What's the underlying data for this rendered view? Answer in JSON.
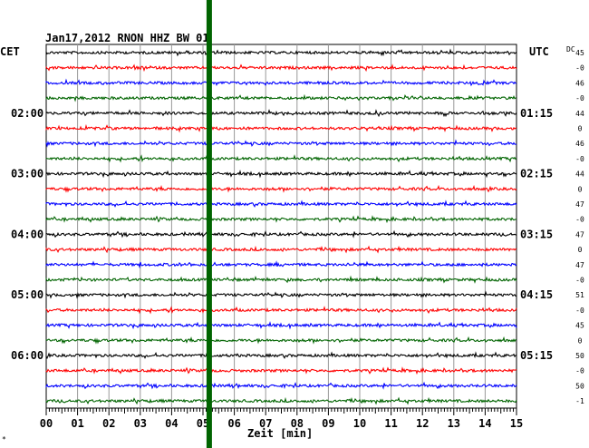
{
  "chart_data": {
    "type": "line",
    "title": "Jan17,2012   RNON HHZ BW 01",
    "left_label": "CET",
    "right_label": "UTC",
    "dc_label": "DC",
    "xlabel": "Zeit [min]",
    "xlim": [
      0,
      15
    ],
    "x_ticks": [
      "00",
      "01",
      "02",
      "03",
      "04",
      "05",
      "06",
      "07",
      "08",
      "09",
      "10",
      "11",
      "12",
      "13",
      "14",
      "15"
    ],
    "trace_colors": [
      "#000000",
      "#ff0000",
      "#0000ff",
      "#006400"
    ],
    "marker_color": "#006400",
    "marker_minute": 5.2,
    "left_hour_labels": [
      {
        "row": 4,
        "text": "02:00"
      },
      {
        "row": 8,
        "text": "03:00"
      },
      {
        "row": 12,
        "text": "04:00"
      },
      {
        "row": 16,
        "text": "05:00"
      },
      {
        "row": 20,
        "text": "06:00"
      }
    ],
    "right_hour_labels": [
      {
        "row": 4,
        "text": "01:15"
      },
      {
        "row": 8,
        "text": "02:15"
      },
      {
        "row": 12,
        "text": "03:15"
      },
      {
        "row": 16,
        "text": "04:15"
      },
      {
        "row": 20,
        "text": "05:15"
      }
    ],
    "dc_offsets": [
      "45",
      "-0",
      "46",
      "-0",
      "44",
      "0",
      "46",
      "-0",
      "44",
      "0",
      "47",
      "-0",
      "47",
      "0",
      "47",
      "-0",
      "51",
      "-0",
      "45",
      "0",
      "50",
      "-0",
      "50",
      "-1"
    ],
    "footnote": "*"
  }
}
